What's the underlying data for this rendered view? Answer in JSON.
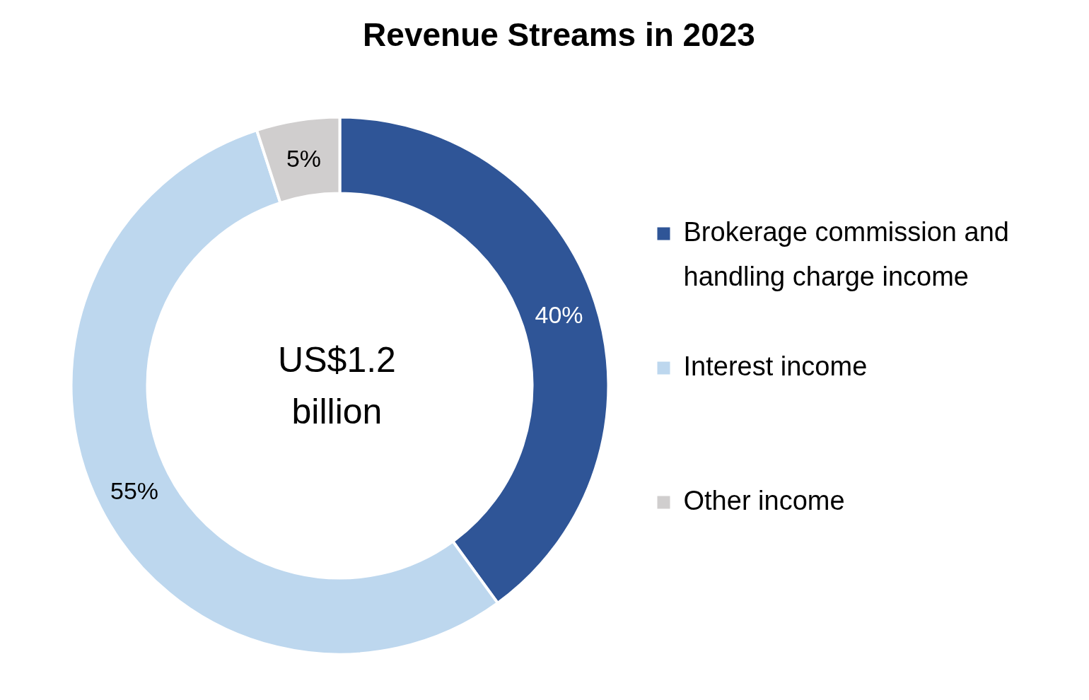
{
  "chart_data": {
    "type": "donut",
    "title": "Revenue Streams in 2023",
    "categories": [
      "Brokerage commission and handling charge income",
      "Interest income",
      "Other income"
    ],
    "values": [
      40,
      55,
      5
    ],
    "colors": [
      "#2f5597",
      "#bdd7ee",
      "#d0cece"
    ],
    "value_labels": [
      "40%",
      "55%",
      "5%"
    ],
    "annotations": [
      "US$1.2 billion"
    ],
    "legend": "right"
  }
}
